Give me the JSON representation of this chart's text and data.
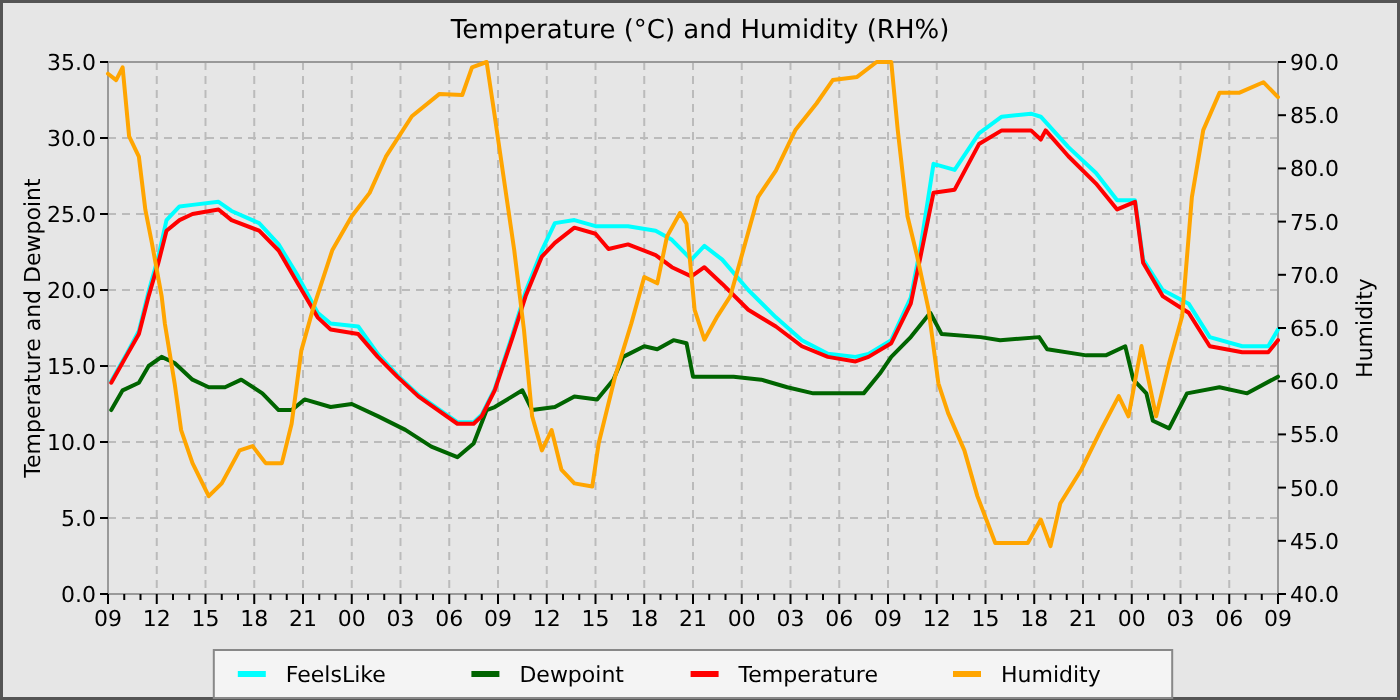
{
  "chart_data": {
    "type": "line",
    "title": "Temperature (°C) and Humidity (RH%)",
    "ylabel": "Temperature and Dewpoint",
    "y2label": "Humidity",
    "xlim": [
      9,
      81
    ],
    "ylim": [
      0,
      35
    ],
    "y2lim": [
      40,
      90
    ],
    "yticks": [
      {
        "value": 0,
        "label": "0.0"
      },
      {
        "value": 5,
        "label": "5.0"
      },
      {
        "value": 10,
        "label": "10.0"
      },
      {
        "value": 15,
        "label": "15.0"
      },
      {
        "value": 20,
        "label": "20.0"
      },
      {
        "value": 25,
        "label": "25.0"
      },
      {
        "value": 30,
        "label": "30.0"
      },
      {
        "value": 35,
        "label": "35.0"
      }
    ],
    "y2ticks": [
      {
        "value": 40,
        "label": "40.0"
      },
      {
        "value": 45,
        "label": "45.0"
      },
      {
        "value": 50,
        "label": "50.0"
      },
      {
        "value": 55,
        "label": "55.0"
      },
      {
        "value": 60,
        "label": "60.0"
      },
      {
        "value": 65,
        "label": "65.0"
      },
      {
        "value": 70,
        "label": "70.0"
      },
      {
        "value": 75,
        "label": "75.0"
      },
      {
        "value": 80,
        "label": "80.0"
      },
      {
        "value": 85,
        "label": "85.0"
      },
      {
        "value": 90,
        "label": "90.0"
      }
    ],
    "xticks": [
      {
        "value": 9,
        "label": "09"
      },
      {
        "value": 10,
        "label": null
      },
      {
        "value": 11,
        "label": null
      },
      {
        "value": 12,
        "label": "12"
      },
      {
        "value": 13,
        "label": null
      },
      {
        "value": 14,
        "label": null
      },
      {
        "value": 15,
        "label": "15"
      },
      {
        "value": 16,
        "label": null
      },
      {
        "value": 17,
        "label": null
      },
      {
        "value": 18,
        "label": "18"
      },
      {
        "value": 19,
        "label": null
      },
      {
        "value": 20,
        "label": null
      },
      {
        "value": 21,
        "label": "21"
      },
      {
        "value": 22,
        "label": null
      },
      {
        "value": 23,
        "label": null
      },
      {
        "value": 24,
        "label": "00"
      },
      {
        "value": 25,
        "label": null
      },
      {
        "value": 26,
        "label": null
      },
      {
        "value": 27,
        "label": "03"
      },
      {
        "value": 28,
        "label": null
      },
      {
        "value": 29,
        "label": null
      },
      {
        "value": 30,
        "label": "06"
      },
      {
        "value": 31,
        "label": null
      },
      {
        "value": 32,
        "label": null
      },
      {
        "value": 33,
        "label": "09"
      },
      {
        "value": 34,
        "label": null
      },
      {
        "value": 35,
        "label": null
      },
      {
        "value": 36,
        "label": "12"
      },
      {
        "value": 37,
        "label": null
      },
      {
        "value": 38,
        "label": null
      },
      {
        "value": 39,
        "label": "15"
      },
      {
        "value": 40,
        "label": null
      },
      {
        "value": 41,
        "label": null
      },
      {
        "value": 42,
        "label": "18"
      },
      {
        "value": 43,
        "label": null
      },
      {
        "value": 44,
        "label": null
      },
      {
        "value": 45,
        "label": "21"
      },
      {
        "value": 46,
        "label": null
      },
      {
        "value": 47,
        "label": null
      },
      {
        "value": 48,
        "label": "00"
      },
      {
        "value": 49,
        "label": null
      },
      {
        "value": 50,
        "label": null
      },
      {
        "value": 51,
        "label": "03"
      },
      {
        "value": 52,
        "label": null
      },
      {
        "value": 53,
        "label": null
      },
      {
        "value": 54,
        "label": "06"
      },
      {
        "value": 55,
        "label": null
      },
      {
        "value": 56,
        "label": null
      },
      {
        "value": 57,
        "label": "09"
      },
      {
        "value": 58,
        "label": null
      },
      {
        "value": 59,
        "label": null
      },
      {
        "value": 60,
        "label": "12"
      },
      {
        "value": 61,
        "label": null
      },
      {
        "value": 62,
        "label": null
      },
      {
        "value": 63,
        "label": "15"
      },
      {
        "value": 64,
        "label": null
      },
      {
        "value": 65,
        "label": null
      },
      {
        "value": 66,
        "label": "18"
      },
      {
        "value": 67,
        "label": null
      },
      {
        "value": 68,
        "label": null
      },
      {
        "value": 69,
        "label": "21"
      },
      {
        "value": 70,
        "label": null
      },
      {
        "value": 71,
        "label": null
      },
      {
        "value": 72,
        "label": "00"
      },
      {
        "value": 73,
        "label": null
      },
      {
        "value": 74,
        "label": null
      },
      {
        "value": 75,
        "label": "03"
      },
      {
        "value": 76,
        "label": null
      },
      {
        "value": 77,
        "label": null
      },
      {
        "value": 78,
        "label": "06"
      },
      {
        "value": 79,
        "label": null
      },
      {
        "value": 80,
        "label": null
      },
      {
        "value": 81,
        "label": "09"
      }
    ],
    "grid": true,
    "legend": "bottom",
    "line_style": "solid",
    "series": [
      {
        "name": "FeelsLike",
        "color": "#00ffff",
        "x": [
          9.2,
          10.1,
          10.9,
          11.5,
          12.1,
          12.6,
          13.4,
          14.2,
          15.8,
          16.6,
          18.3,
          19.5,
          20.7,
          21.9,
          22.7,
          24.4,
          25.6,
          26.8,
          28.1,
          29.3,
          30.5,
          31.5,
          32.0,
          32.8,
          33.9,
          34.7,
          35.7,
          36.5,
          37.7,
          39.0,
          41.0,
          42.7,
          43.7,
          44.9,
          45.7,
          46.8,
          48.4,
          50.1,
          51.7,
          53.3,
          55.0,
          55.8,
          57.2,
          58.4,
          59.0,
          59.8,
          61.1,
          62.6,
          64.0,
          65.8,
          66.4,
          68.1,
          69.8,
          71.1,
          72.2,
          72.7,
          73.9,
          75.5,
          76.8,
          78.8,
          80.4,
          81
        ],
        "values": [
          14.0,
          15.7,
          17.3,
          19.9,
          22.2,
          24.6,
          25.5,
          25.6,
          25.8,
          25.2,
          24.4,
          23.0,
          20.9,
          18.5,
          17.8,
          17.6,
          15.8,
          14.4,
          13.1,
          12.2,
          11.3,
          11.3,
          11.8,
          13.5,
          17.1,
          19.9,
          22.6,
          24.4,
          24.6,
          24.2,
          24.2,
          23.9,
          23.3,
          22.0,
          22.9,
          22.0,
          20.0,
          18.2,
          16.7,
          15.8,
          15.6,
          15.8,
          16.7,
          19.5,
          22.8,
          28.3,
          27.9,
          30.3,
          31.4,
          31.6,
          31.4,
          29.4,
          27.7,
          25.9,
          25.9,
          22.0,
          20.0,
          19.1,
          16.9,
          16.3,
          16.3,
          17.4
        ]
      },
      {
        "name": "Dewpoint",
        "color": "#006400",
        "x": [
          9.2,
          9.9,
          10.9,
          11.5,
          12.3,
          13.1,
          14.2,
          15.2,
          16.2,
          17.2,
          18.5,
          19.5,
          20.3,
          21.1,
          22.7,
          24.0,
          25.6,
          27.3,
          28.9,
          30.5,
          31.5,
          32.3,
          32.8,
          34.5,
          35.1,
          36.5,
          37.7,
          39.1,
          40.1,
          40.7,
          42.0,
          42.8,
          43.8,
          44.6,
          45.0,
          47.5,
          49.2,
          50.8,
          52.4,
          54.1,
          55.5,
          56.5,
          57.2,
          58.4,
          59.6,
          60.3,
          62.7,
          63.9,
          66.3,
          66.8,
          69.2,
          70.4,
          71.6,
          72.1,
          72.9,
          73.3,
          74.3,
          75.4,
          77.4,
          79.1,
          81
        ],
        "values": [
          12.1,
          13.4,
          13.9,
          15.0,
          15.6,
          15.2,
          14.1,
          13.6,
          13.6,
          14.1,
          13.2,
          12.1,
          12.1,
          12.8,
          12.3,
          12.5,
          11.7,
          10.8,
          9.7,
          9.0,
          9.9,
          12.1,
          12.3,
          13.4,
          12.1,
          12.3,
          13.0,
          12.8,
          14.1,
          15.6,
          16.3,
          16.1,
          16.7,
          16.5,
          14.3,
          14.3,
          14.1,
          13.6,
          13.2,
          13.2,
          13.2,
          14.5,
          15.6,
          16.9,
          18.5,
          17.1,
          16.9,
          16.7,
          16.9,
          16.1,
          15.7,
          15.7,
          16.3,
          14.1,
          13.2,
          11.4,
          10.9,
          13.2,
          13.6,
          13.2,
          14.3
        ]
      },
      {
        "name": "Temperature",
        "color": "#ff0000",
        "x": [
          9.2,
          10.1,
          10.9,
          11.5,
          12.1,
          12.6,
          13.4,
          14.2,
          15.8,
          16.6,
          18.3,
          19.5,
          20.7,
          21.9,
          22.7,
          24.4,
          25.6,
          26.8,
          28.1,
          29.3,
          30.5,
          31.5,
          32.0,
          32.8,
          33.9,
          34.7,
          35.7,
          36.5,
          37.7,
          39.0,
          39.8,
          41.0,
          42.7,
          43.7,
          44.9,
          45.7,
          46.8,
          48.4,
          50.1,
          51.7,
          53.3,
          55.0,
          55.8,
          57.2,
          58.4,
          59.0,
          59.8,
          61.1,
          62.6,
          64.0,
          65.8,
          66.4,
          66.7,
          68.1,
          69.8,
          71.1,
          72.2,
          72.7,
          73.9,
          75.5,
          76.8,
          78.8,
          80.4,
          81
        ],
        "values": [
          13.9,
          15.6,
          17.1,
          19.6,
          21.8,
          23.9,
          24.6,
          25.0,
          25.3,
          24.6,
          23.9,
          22.6,
          20.4,
          18.2,
          17.4,
          17.1,
          15.6,
          14.3,
          13.0,
          12.1,
          11.2,
          11.2,
          11.7,
          13.4,
          16.9,
          19.6,
          22.2,
          23.1,
          24.1,
          23.7,
          22.7,
          23.0,
          22.3,
          21.5,
          20.9,
          21.5,
          20.4,
          18.7,
          17.6,
          16.3,
          15.6,
          15.3,
          15.6,
          16.5,
          19.1,
          22.2,
          26.4,
          26.6,
          29.6,
          30.5,
          30.5,
          29.9,
          30.5,
          28.8,
          27.0,
          25.3,
          25.8,
          21.8,
          19.6,
          18.5,
          16.3,
          15.9,
          15.9,
          16.7
        ]
      },
      {
        "name": "Humidity",
        "color": "#ffa500",
        "axis": "y2",
        "x": [
          9,
          9.5,
          9.9,
          10.3,
          10.9,
          11.3,
          11.7,
          12.3,
          12.5,
          13.1,
          13.5,
          14.2,
          15.2,
          16.0,
          17.1,
          17.9,
          18.7,
          19.7,
          20.3,
          20.9,
          21.6,
          22.8,
          24.0,
          25.1,
          26.1,
          27.7,
          29.4,
          30.8,
          31.4,
          32.3,
          32.8,
          33.4,
          34.0,
          34.6,
          35.1,
          35.7,
          36.3,
          36.9,
          37.7,
          38.8,
          39.2,
          40.2,
          41.2,
          42.0,
          42.8,
          43.4,
          44.2,
          44.6,
          45.1,
          45.7,
          46.5,
          47.3,
          48.2,
          49.0,
          50.1,
          51.3,
          52.6,
          53.6,
          55.1,
          56.3,
          57.2,
          57.6,
          58.2,
          58.8,
          59.5,
          60.1,
          60.7,
          61.7,
          62.5,
          63.6,
          65.6,
          66.4,
          67.0,
          67.6,
          68.9,
          70.1,
          71.2,
          71.8,
          72.6,
          73.5,
          74.3,
          75.1,
          75.7,
          76.4,
          77.4,
          78.6,
          80.1,
          81
        ],
        "values": [
          88.9,
          88.3,
          89.5,
          83.0,
          81.1,
          76.1,
          73.0,
          68.0,
          65.4,
          59.8,
          55.4,
          52.3,
          49.2,
          50.4,
          53.5,
          53.9,
          52.3,
          52.3,
          56.0,
          62.9,
          66.7,
          72.3,
          75.5,
          77.7,
          81.1,
          84.9,
          87.0,
          86.9,
          89.5,
          90,
          84.9,
          78.6,
          72.3,
          64.8,
          56.7,
          53.5,
          55.4,
          51.7,
          50.4,
          50.1,
          54.2,
          60.4,
          65.4,
          69.8,
          69.2,
          73.6,
          75.8,
          74.8,
          66.7,
          63.9,
          66.1,
          68.0,
          72.9,
          77.3,
          79.8,
          83.6,
          86.1,
          88.3,
          88.6,
          90,
          90,
          83.6,
          75.5,
          71.7,
          66.7,
          59.8,
          57.0,
          53.5,
          49.2,
          44.8,
          44.8,
          47.0,
          44.5,
          48.5,
          51.7,
          55.4,
          58.6,
          56.7,
          63.3,
          56.7,
          61.7,
          66.1,
          77.3,
          83.6,
          87.1,
          87.1,
          88.1,
          86.7
        ]
      }
    ]
  }
}
